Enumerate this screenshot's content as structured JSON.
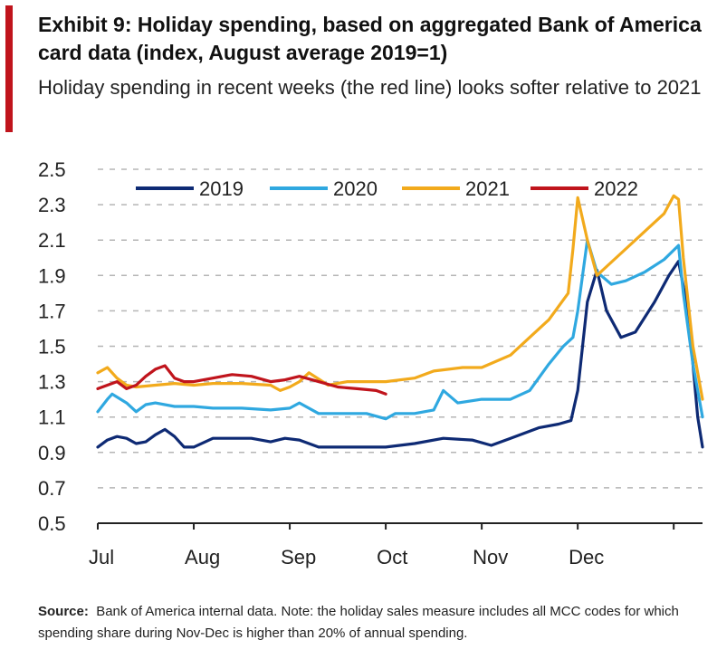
{
  "header": {
    "title": "Exhibit 9: Holiday spending, based on aggregated Bank of America card data (index, August average 2019=1)",
    "subtitle": "Holiday spending in recent weeks (the red line) looks softer relative to 2021"
  },
  "footer": {
    "source_label": "Source:",
    "source_text": "Bank of America internal data. Note: the holiday sales measure includes all MCC codes for which spending share during Nov-Dec is higher than 20% of annual spending."
  },
  "colors": {
    "accent": "#c0141c",
    "2019": "#0e2a74",
    "2020": "#2fa8e0",
    "2021": "#f2aa1c",
    "2022": "#c0141c",
    "grid": "#b5b5b5"
  },
  "chart_data": {
    "type": "line",
    "title": "",
    "xlabel": "",
    "ylabel": "",
    "ylim": [
      0.5,
      2.5
    ],
    "yticks": [
      "2.5",
      "2.3",
      "2.1",
      "1.9",
      "1.7",
      "1.5",
      "1.3",
      "1.1",
      "0.9",
      "0.7",
      "0.5"
    ],
    "ytick_values": [
      2.5,
      2.3,
      2.1,
      1.9,
      1.7,
      1.5,
      1.3,
      1.1,
      0.9,
      0.7,
      0.5
    ],
    "xlim": [
      0,
      6.3
    ],
    "xticks": [
      "Jul",
      "Aug",
      "Sep",
      "Oct",
      "Nov",
      "Dec"
    ],
    "xtick_values": [
      0,
      1,
      2,
      3,
      4,
      5
    ],
    "grid": "horizontal dashed",
    "legend_position": "top",
    "series": [
      {
        "name": "2019",
        "color": "#0e2a74",
        "x": [
          0,
          0.1,
          0.2,
          0.3,
          0.4,
          0.5,
          0.6,
          0.7,
          0.8,
          0.9,
          1.0,
          1.2,
          1.4,
          1.6,
          1.8,
          1.95,
          2.1,
          2.3,
          2.5,
          2.8,
          3.0,
          3.3,
          3.6,
          3.9,
          4.1,
          4.3,
          4.6,
          4.8,
          4.93,
          5.0,
          5.05,
          5.1,
          5.2,
          5.3,
          5.45,
          5.6,
          5.8,
          5.95,
          6.05,
          6.15,
          6.2,
          6.25,
          6.3
        ],
        "y": [
          0.93,
          0.97,
          0.99,
          0.98,
          0.95,
          0.96,
          1.0,
          1.03,
          0.99,
          0.93,
          0.93,
          0.98,
          0.98,
          0.98,
          0.96,
          0.98,
          0.97,
          0.93,
          0.93,
          0.93,
          0.93,
          0.95,
          0.98,
          0.97,
          0.94,
          0.98,
          1.04,
          1.06,
          1.08,
          1.25,
          1.5,
          1.75,
          1.93,
          1.7,
          1.55,
          1.58,
          1.75,
          1.9,
          1.98,
          1.7,
          1.4,
          1.1,
          0.93
        ]
      },
      {
        "name": "2020",
        "color": "#2fa8e0",
        "x": [
          0,
          0.1,
          0.15,
          0.3,
          0.4,
          0.5,
          0.6,
          0.8,
          1.0,
          1.2,
          1.5,
          1.8,
          2.0,
          2.1,
          2.3,
          2.5,
          2.8,
          3.0,
          3.1,
          3.3,
          3.5,
          3.6,
          3.75,
          4.0,
          4.3,
          4.5,
          4.7,
          4.85,
          4.95,
          5.0,
          5.1,
          5.2,
          5.35,
          5.5,
          5.7,
          5.9,
          6.05,
          6.1,
          6.2,
          6.3
        ],
        "y": [
          1.13,
          1.2,
          1.23,
          1.18,
          1.13,
          1.17,
          1.18,
          1.16,
          1.16,
          1.15,
          1.15,
          1.14,
          1.15,
          1.18,
          1.12,
          1.12,
          1.12,
          1.09,
          1.12,
          1.12,
          1.14,
          1.25,
          1.18,
          1.2,
          1.2,
          1.25,
          1.4,
          1.5,
          1.55,
          1.7,
          2.1,
          1.92,
          1.85,
          1.87,
          1.92,
          1.99,
          2.07,
          1.8,
          1.4,
          1.1
        ]
      },
      {
        "name": "2021",
        "color": "#f2aa1c",
        "x": [
          0,
          0.1,
          0.2,
          0.3,
          0.4,
          0.6,
          0.8,
          1.0,
          1.2,
          1.5,
          1.8,
          1.9,
          2.0,
          2.1,
          2.2,
          2.4,
          2.6,
          2.8,
          3.0,
          3.3,
          3.5,
          3.8,
          4.0,
          4.3,
          4.5,
          4.7,
          4.9,
          4.95,
          5.0,
          5.1,
          5.2,
          5.3,
          5.5,
          5.7,
          5.9,
          6.0,
          6.05,
          6.1,
          6.2,
          6.3
        ],
        "y": [
          1.35,
          1.38,
          1.32,
          1.28,
          1.27,
          1.28,
          1.29,
          1.28,
          1.29,
          1.29,
          1.28,
          1.25,
          1.27,
          1.3,
          1.35,
          1.28,
          1.3,
          1.3,
          1.3,
          1.32,
          1.36,
          1.38,
          1.38,
          1.45,
          1.55,
          1.65,
          1.8,
          2.05,
          2.34,
          2.1,
          1.9,
          1.95,
          2.05,
          2.15,
          2.25,
          2.35,
          2.33,
          2.0,
          1.5,
          1.2
        ]
      },
      {
        "name": "2022",
        "color": "#c0141c",
        "x": [
          0,
          0.1,
          0.2,
          0.3,
          0.4,
          0.5,
          0.6,
          0.7,
          0.8,
          0.9,
          1.0,
          1.2,
          1.4,
          1.6,
          1.8,
          1.95,
          2.1,
          2.3,
          2.5,
          2.7,
          2.9,
          3.0
        ],
        "y": [
          1.26,
          1.28,
          1.3,
          1.26,
          1.28,
          1.33,
          1.37,
          1.39,
          1.32,
          1.3,
          1.3,
          1.32,
          1.34,
          1.33,
          1.3,
          1.31,
          1.33,
          1.3,
          1.27,
          1.26,
          1.25,
          1.23
        ]
      }
    ]
  }
}
